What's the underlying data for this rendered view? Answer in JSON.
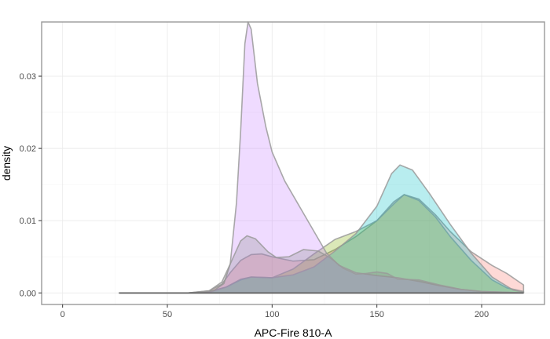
{
  "chart_data": {
    "type": "area",
    "title": "",
    "xlabel": "APC-Fire 810-A",
    "ylabel": "density",
    "xlim": [
      -10,
      230
    ],
    "ylim": [
      -0.0016,
      0.0375
    ],
    "x_ticks": [
      0,
      50,
      100,
      150,
      200
    ],
    "x_tick_labels": [
      "0",
      "50",
      "100",
      "150",
      "200"
    ],
    "y_ticks": [
      0.0,
      0.01,
      0.02,
      0.03
    ],
    "y_tick_labels": [
      "0.00",
      "0.01",
      "0.02",
      "0.03"
    ],
    "grid": true,
    "legend": "none",
    "series": [
      {
        "color": "#f8766d",
        "points": [
          [
            27,
            0
          ],
          [
            60,
            0
          ],
          [
            70,
            0.0003
          ],
          [
            76,
            0.0012
          ],
          [
            80,
            0.0028
          ],
          [
            85,
            0.0045
          ],
          [
            90,
            0.0053
          ],
          [
            95,
            0.0054
          ],
          [
            100,
            0.005
          ],
          [
            110,
            0.0044
          ],
          [
            120,
            0.0046
          ],
          [
            130,
            0.006
          ],
          [
            140,
            0.0078
          ],
          [
            150,
            0.01
          ],
          [
            158,
            0.0126
          ],
          [
            163,
            0.0136
          ],
          [
            170,
            0.013
          ],
          [
            178,
            0.0108
          ],
          [
            185,
            0.0085
          ],
          [
            195,
            0.0057
          ],
          [
            205,
            0.0038
          ],
          [
            212,
            0.0027
          ],
          [
            220,
            0.0011
          ],
          [
            220,
            0
          ]
        ]
      },
      {
        "color": "#7cae00",
        "points": [
          [
            27,
            0
          ],
          [
            60,
            0
          ],
          [
            70,
            0.0002
          ],
          [
            78,
            0.0008
          ],
          [
            85,
            0.0018
          ],
          [
            90,
            0.0022
          ],
          [
            100,
            0.0021
          ],
          [
            110,
            0.0033
          ],
          [
            120,
            0.0054
          ],
          [
            130,
            0.0074
          ],
          [
            140,
            0.0085
          ],
          [
            150,
            0.01
          ],
          [
            158,
            0.0123
          ],
          [
            163,
            0.0136
          ],
          [
            170,
            0.0128
          ],
          [
            178,
            0.0105
          ],
          [
            185,
            0.0078
          ],
          [
            195,
            0.0045
          ],
          [
            205,
            0.0018
          ],
          [
            212,
            0.0007
          ],
          [
            220,
            0.0002
          ],
          [
            220,
            0
          ]
        ]
      },
      {
        "color": "#00bfc4",
        "points": [
          [
            27,
            0
          ],
          [
            60,
            0
          ],
          [
            70,
            0.0001
          ],
          [
            78,
            0.0008
          ],
          [
            85,
            0.0019
          ],
          [
            90,
            0.0022
          ],
          [
            100,
            0.0021
          ],
          [
            110,
            0.0025
          ],
          [
            120,
            0.0036
          ],
          [
            130,
            0.0058
          ],
          [
            140,
            0.0082
          ],
          [
            150,
            0.012
          ],
          [
            157,
            0.0165
          ],
          [
            161,
            0.0177
          ],
          [
            167,
            0.017
          ],
          [
            175,
            0.0138
          ],
          [
            185,
            0.0095
          ],
          [
            195,
            0.0055
          ],
          [
            205,
            0.0022
          ],
          [
            215,
            0.0004
          ],
          [
            220,
            0.0001
          ],
          [
            220,
            0
          ]
        ]
      },
      {
        "color": "#c77cff",
        "points": [
          [
            27,
            0
          ],
          [
            65,
            0
          ],
          [
            72,
            0.0003
          ],
          [
            77,
            0.0013
          ],
          [
            80,
            0.004
          ],
          [
            83,
            0.0125
          ],
          [
            85,
            0.0225
          ],
          [
            87,
            0.0345
          ],
          [
            88.5,
            0.0375
          ],
          [
            90,
            0.0365
          ],
          [
            93,
            0.029
          ],
          [
            97,
            0.023
          ],
          [
            100,
            0.0195
          ],
          [
            106,
            0.0155
          ],
          [
            112,
            0.0125
          ],
          [
            120,
            0.0085
          ],
          [
            126,
            0.0055
          ],
          [
            132,
            0.0038
          ],
          [
            140,
            0.0028
          ],
          [
            150,
            0.0024
          ],
          [
            160,
            0.0021
          ],
          [
            170,
            0.0016
          ],
          [
            180,
            0.001
          ],
          [
            190,
            0.0005
          ],
          [
            200,
            0.0002
          ],
          [
            210,
            0.0001
          ],
          [
            220,
            0
          ],
          [
            220,
            0
          ]
        ]
      },
      {
        "color": "#888888",
        "points": [
          [
            27,
            0
          ],
          [
            60,
            0
          ],
          [
            70,
            0.0003
          ],
          [
            76,
            0.0015
          ],
          [
            80,
            0.004
          ],
          [
            85,
            0.0072
          ],
          [
            88,
            0.0079
          ],
          [
            92,
            0.0075
          ],
          [
            98,
            0.0057
          ],
          [
            102,
            0.0049
          ],
          [
            108,
            0.005
          ],
          [
            115,
            0.006
          ],
          [
            122,
            0.0058
          ],
          [
            128,
            0.0048
          ],
          [
            134,
            0.0034
          ],
          [
            140,
            0.0026
          ],
          [
            145,
            0.0027
          ],
          [
            150,
            0.0029
          ],
          [
            155,
            0.0027
          ],
          [
            160,
            0.0019
          ],
          [
            170,
            0.0018
          ],
          [
            180,
            0.0011
          ],
          [
            190,
            0.0005
          ],
          [
            200,
            0.0002
          ],
          [
            210,
            0.0001
          ],
          [
            220,
            0
          ],
          [
            220,
            0
          ]
        ]
      }
    ]
  }
}
